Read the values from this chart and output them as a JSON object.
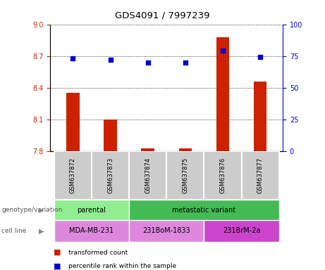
{
  "title": "GDS4091 / 7997239",
  "samples": [
    "GSM637872",
    "GSM637873",
    "GSM637874",
    "GSM637875",
    "GSM637876",
    "GSM637877"
  ],
  "bar_values": [
    8.35,
    8.1,
    7.83,
    7.83,
    8.88,
    8.46
  ],
  "percentile_values": [
    73,
    72,
    70,
    70,
    79,
    74
  ],
  "ylim_left": [
    7.8,
    9.0
  ],
  "ylim_right": [
    0,
    100
  ],
  "yticks_left": [
    7.8,
    8.1,
    8.4,
    8.7,
    9.0
  ],
  "yticks_right": [
    0,
    25,
    50,
    75,
    100
  ],
  "bar_color": "#cc2200",
  "dot_color": "#0000cc",
  "bar_width": 0.35,
  "left_tick_color": "#cc2200",
  "right_tick_color": "#0000cc",
  "parental_color": "#90ee90",
  "metastatic_color": "#44bb55",
  "cell_mda_color": "#dd88dd",
  "cell_bom_color": "#dd88dd",
  "cell_brm_color": "#cc44cc",
  "sample_box_color": "#cccccc"
}
